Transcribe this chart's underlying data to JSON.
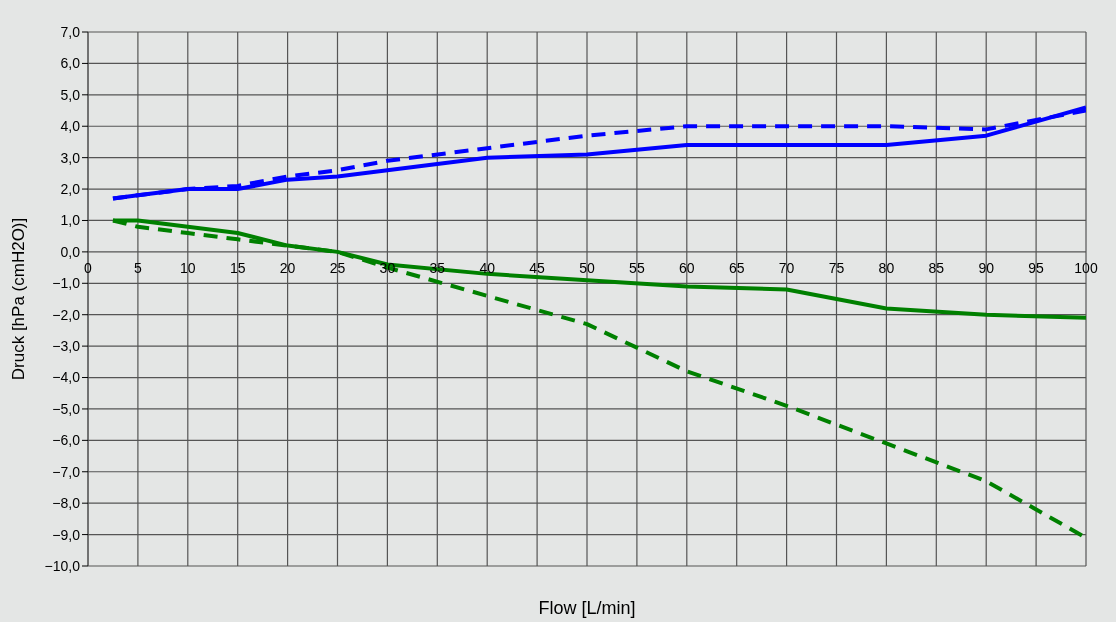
{
  "chart_data": {
    "type": "line",
    "xlabel": "Flow [L/min]",
    "ylabel": "Druck [hPa (cmH2O)]",
    "x": [
      2.5,
      5,
      10,
      15,
      20,
      25,
      30,
      40,
      50,
      60,
      70,
      80,
      90,
      100
    ],
    "series": [
      {
        "color": "#0000ff",
        "line_style": "solid",
        "values": [
          1.7,
          1.8,
          2.0,
          2.0,
          2.3,
          2.4,
          2.6,
          3.0,
          3.1,
          3.4,
          3.4,
          3.4,
          3.7,
          4.6
        ]
      },
      {
        "color": "#0000ff",
        "line_style": "dashed",
        "values": [
          1.7,
          1.8,
          2.0,
          2.1,
          2.4,
          2.6,
          2.9,
          3.3,
          3.7,
          4.0,
          4.0,
          4.0,
          3.9,
          4.5
        ]
      },
      {
        "color": "#008000",
        "line_style": "solid",
        "values": [
          1.0,
          1.0,
          0.8,
          0.6,
          0.2,
          0.0,
          -0.4,
          -0.7,
          -0.9,
          -1.1,
          -1.2,
          -1.8,
          -2.0,
          -2.1
        ]
      },
      {
        "color": "#008000",
        "line_style": "dashed",
        "values": [
          1.0,
          0.8,
          0.6,
          0.4,
          0.2,
          0.0,
          -0.5,
          -1.4,
          -2.3,
          -3.8,
          -4.9,
          -6.1,
          -7.3,
          -9.1
        ]
      }
    ],
    "xlim": [
      0,
      100
    ],
    "xticks": [
      0,
      5,
      10,
      15,
      20,
      25,
      30,
      35,
      40,
      45,
      50,
      55,
      60,
      65,
      70,
      75,
      80,
      85,
      90,
      95,
      100
    ],
    "ylim": [
      -10,
      7
    ],
    "yticks": [
      {
        "value": -10,
        "label": "−10,0"
      },
      {
        "value": -9,
        "label": "−9,0"
      },
      {
        "value": -8,
        "label": "−8,0"
      },
      {
        "value": -7,
        "label": "−7,0"
      },
      {
        "value": -6,
        "label": "−6,0"
      },
      {
        "value": -5,
        "label": "−5,0"
      },
      {
        "value": -4,
        "label": "−4,0"
      },
      {
        "value": -3,
        "label": "−3,0"
      },
      {
        "value": -2,
        "label": "−2,0"
      },
      {
        "value": -1,
        "label": "−1,0"
      },
      {
        "value": 0,
        "label": "0,0"
      },
      {
        "value": 1,
        "label": "1,0"
      },
      {
        "value": 2,
        "label": "2,0"
      },
      {
        "value": 3,
        "label": "3,0"
      },
      {
        "value": 4,
        "label": "4,0"
      },
      {
        "value": 5,
        "label": "5,0"
      },
      {
        "value": 6,
        "label": "6,0"
      },
      {
        "value": 7,
        "label": "7,0"
      }
    ],
    "grid": true,
    "legend": false,
    "marker": "none"
  }
}
